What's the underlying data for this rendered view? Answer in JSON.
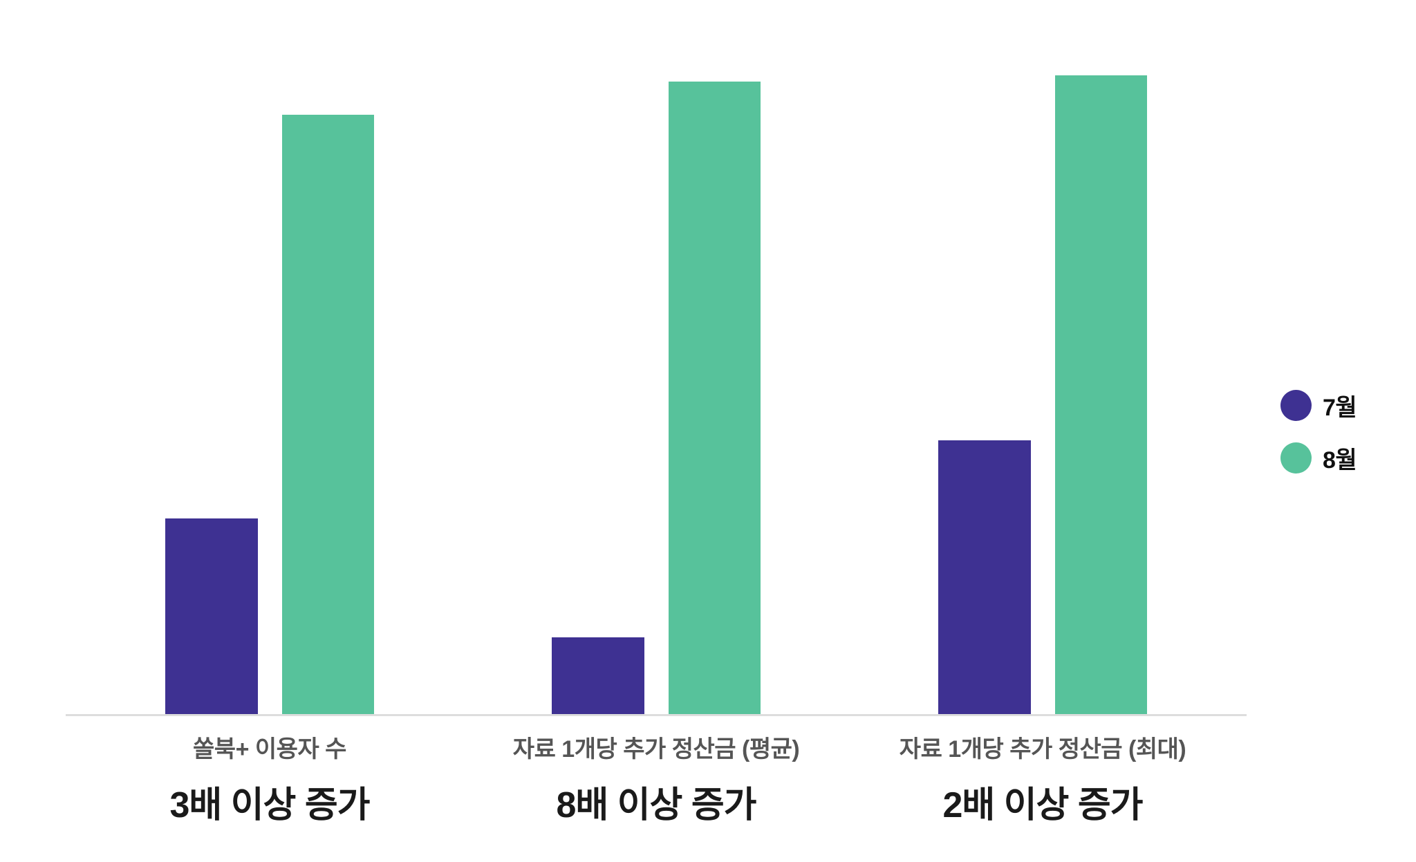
{
  "chart_data": {
    "type": "bar",
    "title": "",
    "xlabel": "",
    "ylabel": "",
    "categories": [
      "쏠북+ 이용자 수",
      "자료 1개당 추가 정산금 (평균)",
      "자료 1개당 추가 정산금 (최대)"
    ],
    "series": [
      {
        "name": "7월",
        "color": "#3E3192",
        "values": [
          28.3,
          11.1,
          39.6
        ]
      },
      {
        "name": "8월",
        "color": "#57C29B",
        "values": [
          86.7,
          91.5,
          92.4
        ]
      }
    ],
    "annotations": [
      "3배 이상 증가",
      "8배 이상 증가",
      "2배 이상 증가"
    ],
    "ylim": [
      0,
      100
    ],
    "grid": false,
    "y_axis_visible": false,
    "legend_position": "right",
    "axis_line_color": "#DDDDDD"
  },
  "colors": {
    "july_purple": "#3E3192",
    "august_green": "#57C29B",
    "category_label": "#555555",
    "annotation_text": "#1A1A1A",
    "baseline": "#DDDDDD",
    "background": "#FFFFFF"
  }
}
